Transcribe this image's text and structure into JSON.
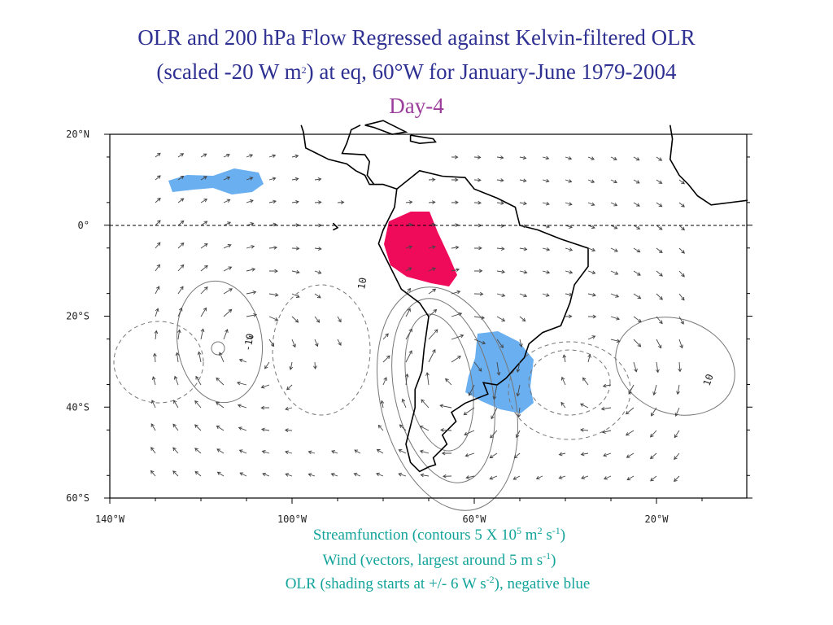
{
  "title": {
    "line1": "OLR and 200 hPa Flow Regressed against Kelvin-filtered OLR",
    "line2": [
      "(scaled -20 W m",
      "2",
      ") at eq, 60°W for January-June 1979-2004"
    ],
    "day": "Day-4"
  },
  "map": {
    "lat_labels": [
      "20°N",
      "0°",
      "20°S",
      "40°S",
      "60°S"
    ],
    "lon_labels": [
      "140°W",
      "100°W",
      "60°W",
      "20°W"
    ],
    "contour_labels": [
      "-10",
      "10",
      "10"
    ]
  },
  "caption": {
    "line1": [
      "Streamfunction (contours 5 X 10",
      "5",
      " m",
      "2",
      " s",
      "-1",
      ")"
    ],
    "line2": [
      "Wind (vectors, largest around 5 m s",
      "-1",
      ")"
    ],
    "line3": [
      "OLR (shading starts at +/- 6 W s",
      "-2",
      "), negative blue"
    ]
  }
}
